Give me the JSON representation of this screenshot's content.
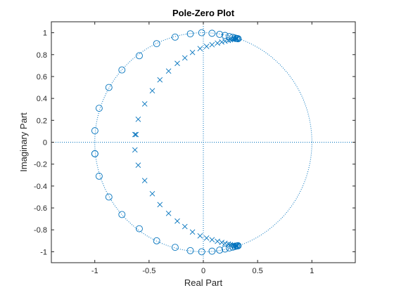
{
  "chart_data": {
    "type": "scatter",
    "title": "Pole-Zero Plot",
    "xlabel": "Real Part",
    "ylabel": "Imaginary Part",
    "xlim": [
      -1.4,
      1.4
    ],
    "ylim": [
      -1.1,
      1.1
    ],
    "xticks": [
      -1,
      -0.5,
      0,
      0.5,
      1
    ],
    "xtick_labels": [
      "-1",
      "-0.5",
      "0",
      "0.5",
      "1"
    ],
    "yticks": [
      -1,
      -0.8,
      -0.6,
      -0.4,
      -0.2,
      0,
      0.2,
      0.4,
      0.6,
      0.8,
      1
    ],
    "ytick_labels": [
      "-1",
      "-0.8",
      "-0.6",
      "-0.4",
      "-0.2",
      "0",
      "0.2",
      "0.4",
      "0.6",
      "0.8",
      "1"
    ],
    "grid": false,
    "unit_circle": true,
    "color": "#0072BD",
    "series": [
      {
        "marker": "o",
        "x": [
          -0.999,
          -0.999,
          -0.96,
          -0.87,
          -0.75,
          -0.59,
          -0.43,
          -0.26,
          -0.12,
          -0.015,
          0.08,
          0.15,
          0.2,
          0.24,
          0.27,
          0.29,
          0.305,
          0.315,
          0.32,
          -0.999,
          -0.96,
          -0.87,
          -0.75,
          -0.59,
          -0.43,
          -0.26,
          -0.12,
          -0.015,
          0.08,
          0.15,
          0.2,
          0.24,
          0.27,
          0.29,
          0.305,
          0.315,
          0.32
        ],
        "y": [
          0.105,
          -0.105,
          0.31,
          0.5,
          0.66,
          0.79,
          0.9,
          0.96,
          0.99,
          1.0,
          0.995,
          0.985,
          0.975,
          0.965,
          0.958,
          0.952,
          0.948,
          0.946,
          0.945,
          -0.105,
          -0.31,
          -0.5,
          -0.66,
          -0.79,
          -0.9,
          -0.96,
          -0.99,
          -1.0,
          -0.995,
          -0.985,
          -0.975,
          -0.965,
          -0.958,
          -0.952,
          -0.948,
          -0.946,
          -0.945
        ]
      },
      {
        "marker": "x",
        "x": [
          -0.62,
          -0.63,
          -0.6,
          -0.54,
          -0.47,
          -0.4,
          -0.32,
          -0.24,
          -0.17,
          -0.1,
          -0.03,
          0.03,
          0.08,
          0.13,
          0.17,
          0.2,
          0.23,
          0.25,
          0.27,
          0.285,
          0.297,
          0.305,
          0.312,
          -0.63,
          -0.6,
          -0.54,
          -0.47,
          -0.4,
          -0.32,
          -0.24,
          -0.17,
          -0.1,
          -0.03,
          0.03,
          0.08,
          0.13,
          0.17,
          0.2,
          0.23,
          0.25,
          0.27,
          0.285,
          0.297,
          0.305,
          0.312
        ],
        "y": [
          0.07,
          0.07,
          0.21,
          0.35,
          0.47,
          0.57,
          0.65,
          0.72,
          0.77,
          0.82,
          0.855,
          0.875,
          0.89,
          0.905,
          0.915,
          0.923,
          0.93,
          0.935,
          0.939,
          0.942,
          0.944,
          0.946,
          0.947,
          -0.07,
          -0.21,
          -0.35,
          -0.47,
          -0.57,
          -0.65,
          -0.72,
          -0.77,
          -0.82,
          -0.855,
          -0.875,
          -0.89,
          -0.905,
          -0.915,
          -0.923,
          -0.93,
          -0.935,
          -0.939,
          -0.942,
          -0.944,
          -0.946,
          -0.947
        ]
      }
    ]
  }
}
